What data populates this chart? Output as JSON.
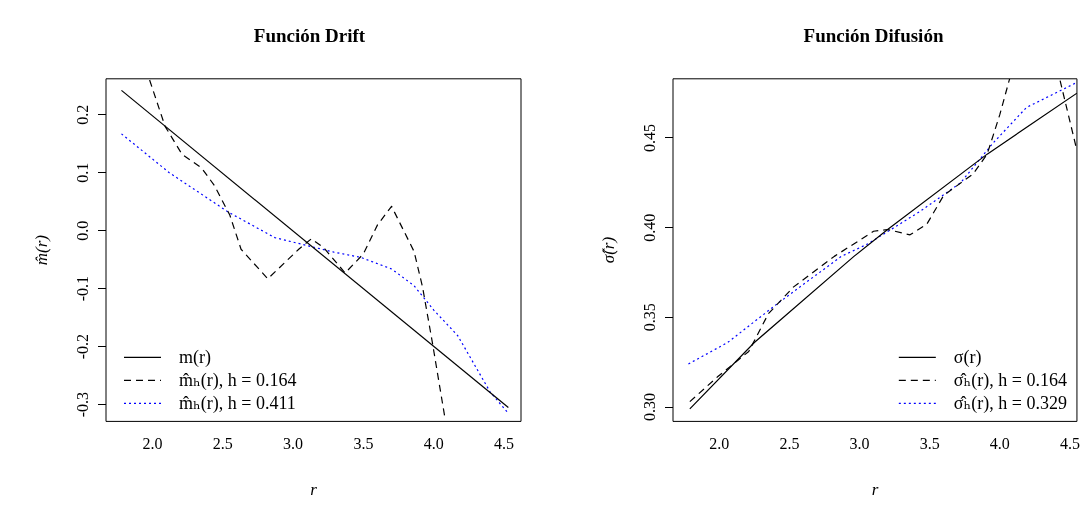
{
  "chart_data": [
    {
      "type": "line",
      "title": "Función Drift",
      "xlabel": "r",
      "ylabel": "m̂(r)",
      "xlim": [
        1.67,
        4.62
      ],
      "ylim": [
        -0.329,
        0.262
      ],
      "xticks": [
        {
          "value": 2,
          "label": "2.0"
        },
        {
          "value": 2.5,
          "label": "2.5"
        },
        {
          "value": 3,
          "label": "3.0"
        },
        {
          "value": 3.5,
          "label": "3.5"
        },
        {
          "value": 4,
          "label": "4.0"
        },
        {
          "value": 4.5,
          "label": "4.5"
        }
      ],
      "yticks": [
        {
          "value": -0.3,
          "label": "-0.3"
        },
        {
          "value": -0.2,
          "label": "-0.2"
        },
        {
          "value": -0.1,
          "label": "-0.1"
        },
        {
          "value": 0,
          "label": "0.0"
        },
        {
          "value": 0.1,
          "label": "0.1"
        },
        {
          "value": 0.2,
          "label": "0.2"
        }
      ],
      "marker": "none",
      "legend": "bottom left",
      "series": [
        {
          "name": "m(r)",
          "color": "#000000",
          "line_style": "solid",
          "x": [
            1.78,
            4.53
          ],
          "values": [
            0.242,
            -0.305
          ]
        },
        {
          "name": "m̂ₕ(r), h = 0.164",
          "color": "#000000",
          "line_style": "dashed",
          "x": [
            1.98,
            2.09,
            2.21,
            2.35,
            2.44,
            2.55,
            2.63,
            2.82,
            3.04,
            3.13,
            3.22,
            3.37,
            3.5,
            3.6,
            3.7,
            3.86,
            3.92,
            3.99,
            4.08
          ],
          "values": [
            0.26,
            0.18,
            0.132,
            0.108,
            0.078,
            0.027,
            -0.032,
            -0.083,
            -0.032,
            -0.014,
            -0.03,
            -0.073,
            -0.04,
            0.01,
            0.042,
            -0.036,
            -0.097,
            -0.193,
            -0.324
          ]
        },
        {
          "name": "m̂ₕ(r), h = 0.411",
          "color": "#0000ff",
          "line_style": "dotted",
          "x": [
            1.78,
            2.12,
            2.54,
            2.87,
            3.29,
            3.48,
            3.7,
            3.86,
            4.0,
            4.17,
            4.4,
            4.53
          ],
          "values": [
            0.167,
            0.1,
            0.032,
            -0.012,
            -0.037,
            -0.046,
            -0.066,
            -0.095,
            -0.137,
            -0.181,
            -0.278,
            -0.315
          ]
        }
      ]
    },
    {
      "type": "line",
      "title": "Función Difusión",
      "xlabel": "r",
      "ylabel": "σ̂(r)",
      "xlim": [
        1.67,
        4.55
      ],
      "ylim": [
        0.292,
        0.483
      ],
      "xticks": [
        {
          "value": 2,
          "label": "2.0"
        },
        {
          "value": 2.5,
          "label": "2.5"
        },
        {
          "value": 3,
          "label": "3.0"
        },
        {
          "value": 3.5,
          "label": "3.5"
        },
        {
          "value": 4,
          "label": "4.0"
        },
        {
          "value": 4.5,
          "label": "4.5"
        }
      ],
      "yticks": [
        {
          "value": 0.3,
          "label": "0.30"
        },
        {
          "value": 0.35,
          "label": "0.35"
        },
        {
          "value": 0.4,
          "label": "0.40"
        },
        {
          "value": 0.45,
          "label": "0.45"
        }
      ],
      "marker": "none",
      "legend": "bottom right",
      "series": [
        {
          "name": "σ(r)",
          "color": "#000000",
          "line_style": "solid",
          "x": [
            1.79,
            2.25,
            2.96,
            3.2,
            3.91,
            4.55
          ],
          "values": [
            0.299,
            0.336,
            0.384,
            0.399,
            0.441,
            0.475
          ]
        },
        {
          "name": "σ̂ₕ(r), h = 0.164",
          "color": "#000000",
          "line_style": "dashed",
          "x": [
            1.79,
            1.99,
            2.21,
            2.35,
            2.53,
            2.82,
            3.1,
            3.2,
            3.36,
            3.48,
            3.6,
            3.81,
            3.91,
            4.0,
            4.07,
            4.25,
            4.43,
            4.55
          ],
          "values": [
            0.303,
            0.317,
            0.331,
            0.352,
            0.367,
            0.384,
            0.398,
            0.399,
            0.396,
            0.402,
            0.418,
            0.43,
            0.441,
            0.463,
            0.483,
            null,
            0.482,
            0.443
          ]
        },
        {
          "name": "σ̂ₕ(r), h = 0.329",
          "color": "#0000ff",
          "line_style": "dotted",
          "x": [
            1.78,
            2.06,
            2.42,
            2.87,
            3.06,
            3.43,
            3.72,
            3.95,
            4.19,
            4.55
          ],
          "values": [
            0.324,
            0.336,
            0.358,
            0.384,
            0.391,
            0.409,
            0.425,
            0.447,
            0.467,
            0.481
          ]
        }
      ]
    }
  ]
}
